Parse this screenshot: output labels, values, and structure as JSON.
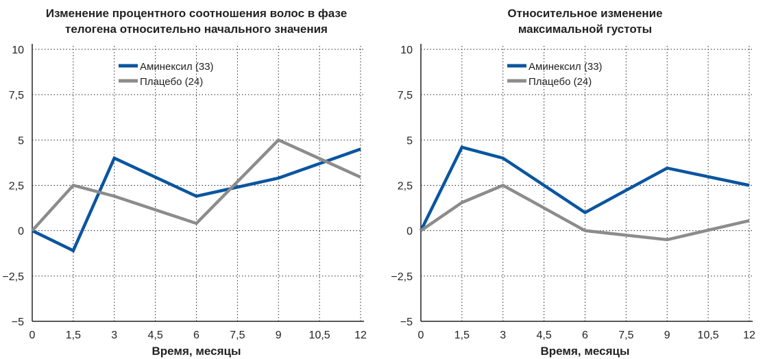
{
  "chart_data": [
    {
      "type": "line",
      "title_lines": [
        "Изменение процентного соотношения волос в фазе",
        "телогена относительно начального значения"
      ],
      "xlabel": "Время, месяцы",
      "ylabel": "",
      "x": [
        0,
        1.5,
        3,
        6,
        9,
        12
      ],
      "xticks": [
        "0",
        "1,5",
        "3",
        "4,5",
        "6",
        "7,5",
        "9",
        "10,5",
        "12"
      ],
      "yticks": [
        "10",
        "7,5",
        "5",
        "2,5",
        "0",
        "−2,5",
        "−5"
      ],
      "xlim": [
        0,
        12
      ],
      "ylim": [
        -5,
        10
      ],
      "grid": true,
      "legend": "top-center",
      "series": [
        {
          "name": "Аминексил (33)",
          "color": "#0a55a0",
          "values": [
            0,
            -1.1,
            4,
            1.9,
            2.9,
            4.5
          ]
        },
        {
          "name": "Плацебо (24)",
          "color": "#8c8c8c",
          "values": [
            0,
            2.5,
            1.9,
            0.4,
            5,
            2.95
          ]
        }
      ]
    },
    {
      "type": "line",
      "title_lines": [
        "Относительное изменение",
        "максимальной густоты"
      ],
      "xlabel": "Время, месяцы",
      "ylabel": "",
      "x": [
        0,
        1.5,
        3,
        6,
        9,
        12
      ],
      "xticks": [
        "0",
        "1,5",
        "3",
        "4,5",
        "6",
        "7,5",
        "9",
        "10,5",
        "12"
      ],
      "yticks": [
        "10",
        "7,5",
        "5",
        "2,5",
        "0",
        "−2,5",
        "−5"
      ],
      "xlim": [
        0,
        12
      ],
      "ylim": [
        -5,
        10
      ],
      "grid": true,
      "legend": "top-center",
      "series": [
        {
          "name": "Аминексил (33)",
          "color": "#0a55a0",
          "values": [
            0,
            4.6,
            4,
            1,
            3.45,
            2.5
          ]
        },
        {
          "name": "Плацебо (24)",
          "color": "#8c8c8c",
          "values": [
            0,
            1.55,
            2.5,
            0,
            -0.5,
            0.55
          ]
        }
      ]
    }
  ]
}
